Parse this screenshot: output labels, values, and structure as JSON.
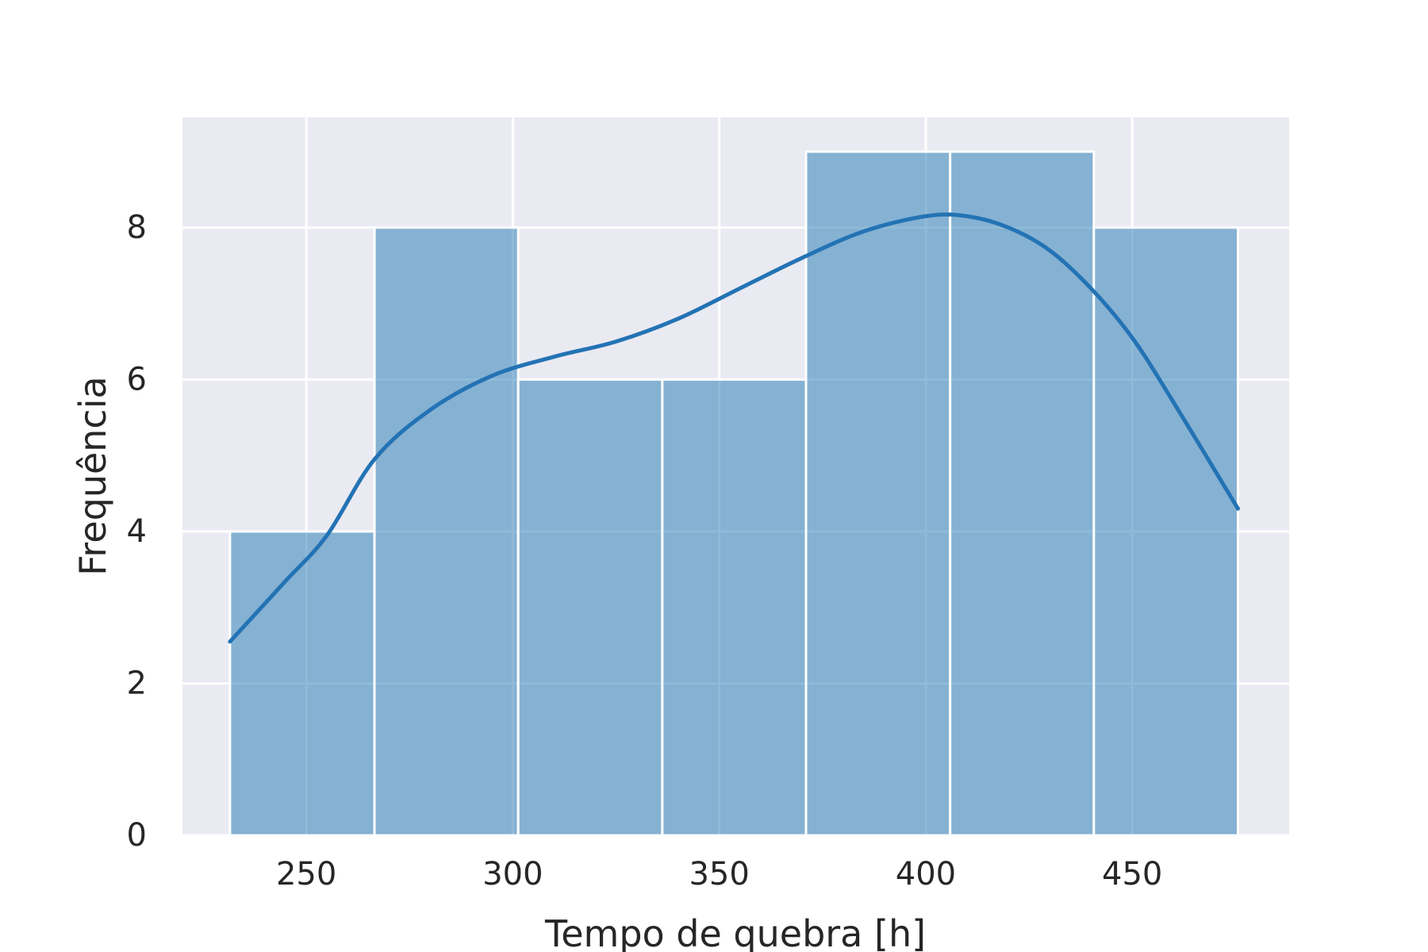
{
  "chart_data": {
    "type": "bar",
    "subtype": "histogram-with-kde",
    "title": "",
    "xlabel": "Tempo de quebra [h]",
    "ylabel": "Frequência",
    "xlim": [
      220,
      488
    ],
    "ylim": [
      0,
      9.45
    ],
    "xticks": [
      250,
      300,
      350,
      400,
      450
    ],
    "yticks": [
      0,
      2,
      4,
      6,
      8
    ],
    "grid": true,
    "legend": "none",
    "bins": [
      {
        "x0": 231.5,
        "x1": 266.5,
        "count": 4
      },
      {
        "x0": 266.5,
        "x1": 301.3,
        "count": 8
      },
      {
        "x0": 301.3,
        "x1": 336.2,
        "count": 6
      },
      {
        "x0": 336.2,
        "x1": 371.0,
        "count": 6
      },
      {
        "x0": 371.0,
        "x1": 405.9,
        "count": 9
      },
      {
        "x0": 405.9,
        "x1": 440.7,
        "count": 9
      },
      {
        "x0": 440.7,
        "x1": 475.6,
        "count": 8
      }
    ],
    "kde": {
      "x": [
        231.5,
        245,
        255,
        266.5,
        280,
        295,
        310,
        325,
        340,
        355,
        370,
        385,
        400,
        410,
        420,
        430,
        440,
        450,
        460,
        475.6
      ],
      "y": [
        2.55,
        3.35,
        3.95,
        4.95,
        5.6,
        6.05,
        6.3,
        6.5,
        6.8,
        7.2,
        7.6,
        7.95,
        8.15,
        8.15,
        8.0,
        7.7,
        7.2,
        6.55,
        5.7,
        4.3
      ]
    },
    "colors": {
      "background": "#eaeaf2",
      "grid": "#ffffff",
      "bar_fill": "#1f77b4",
      "bar_opacity": 0.5,
      "bar_edge": "#ffffff",
      "kde_line": "#2373b4",
      "text": "#262626"
    }
  }
}
